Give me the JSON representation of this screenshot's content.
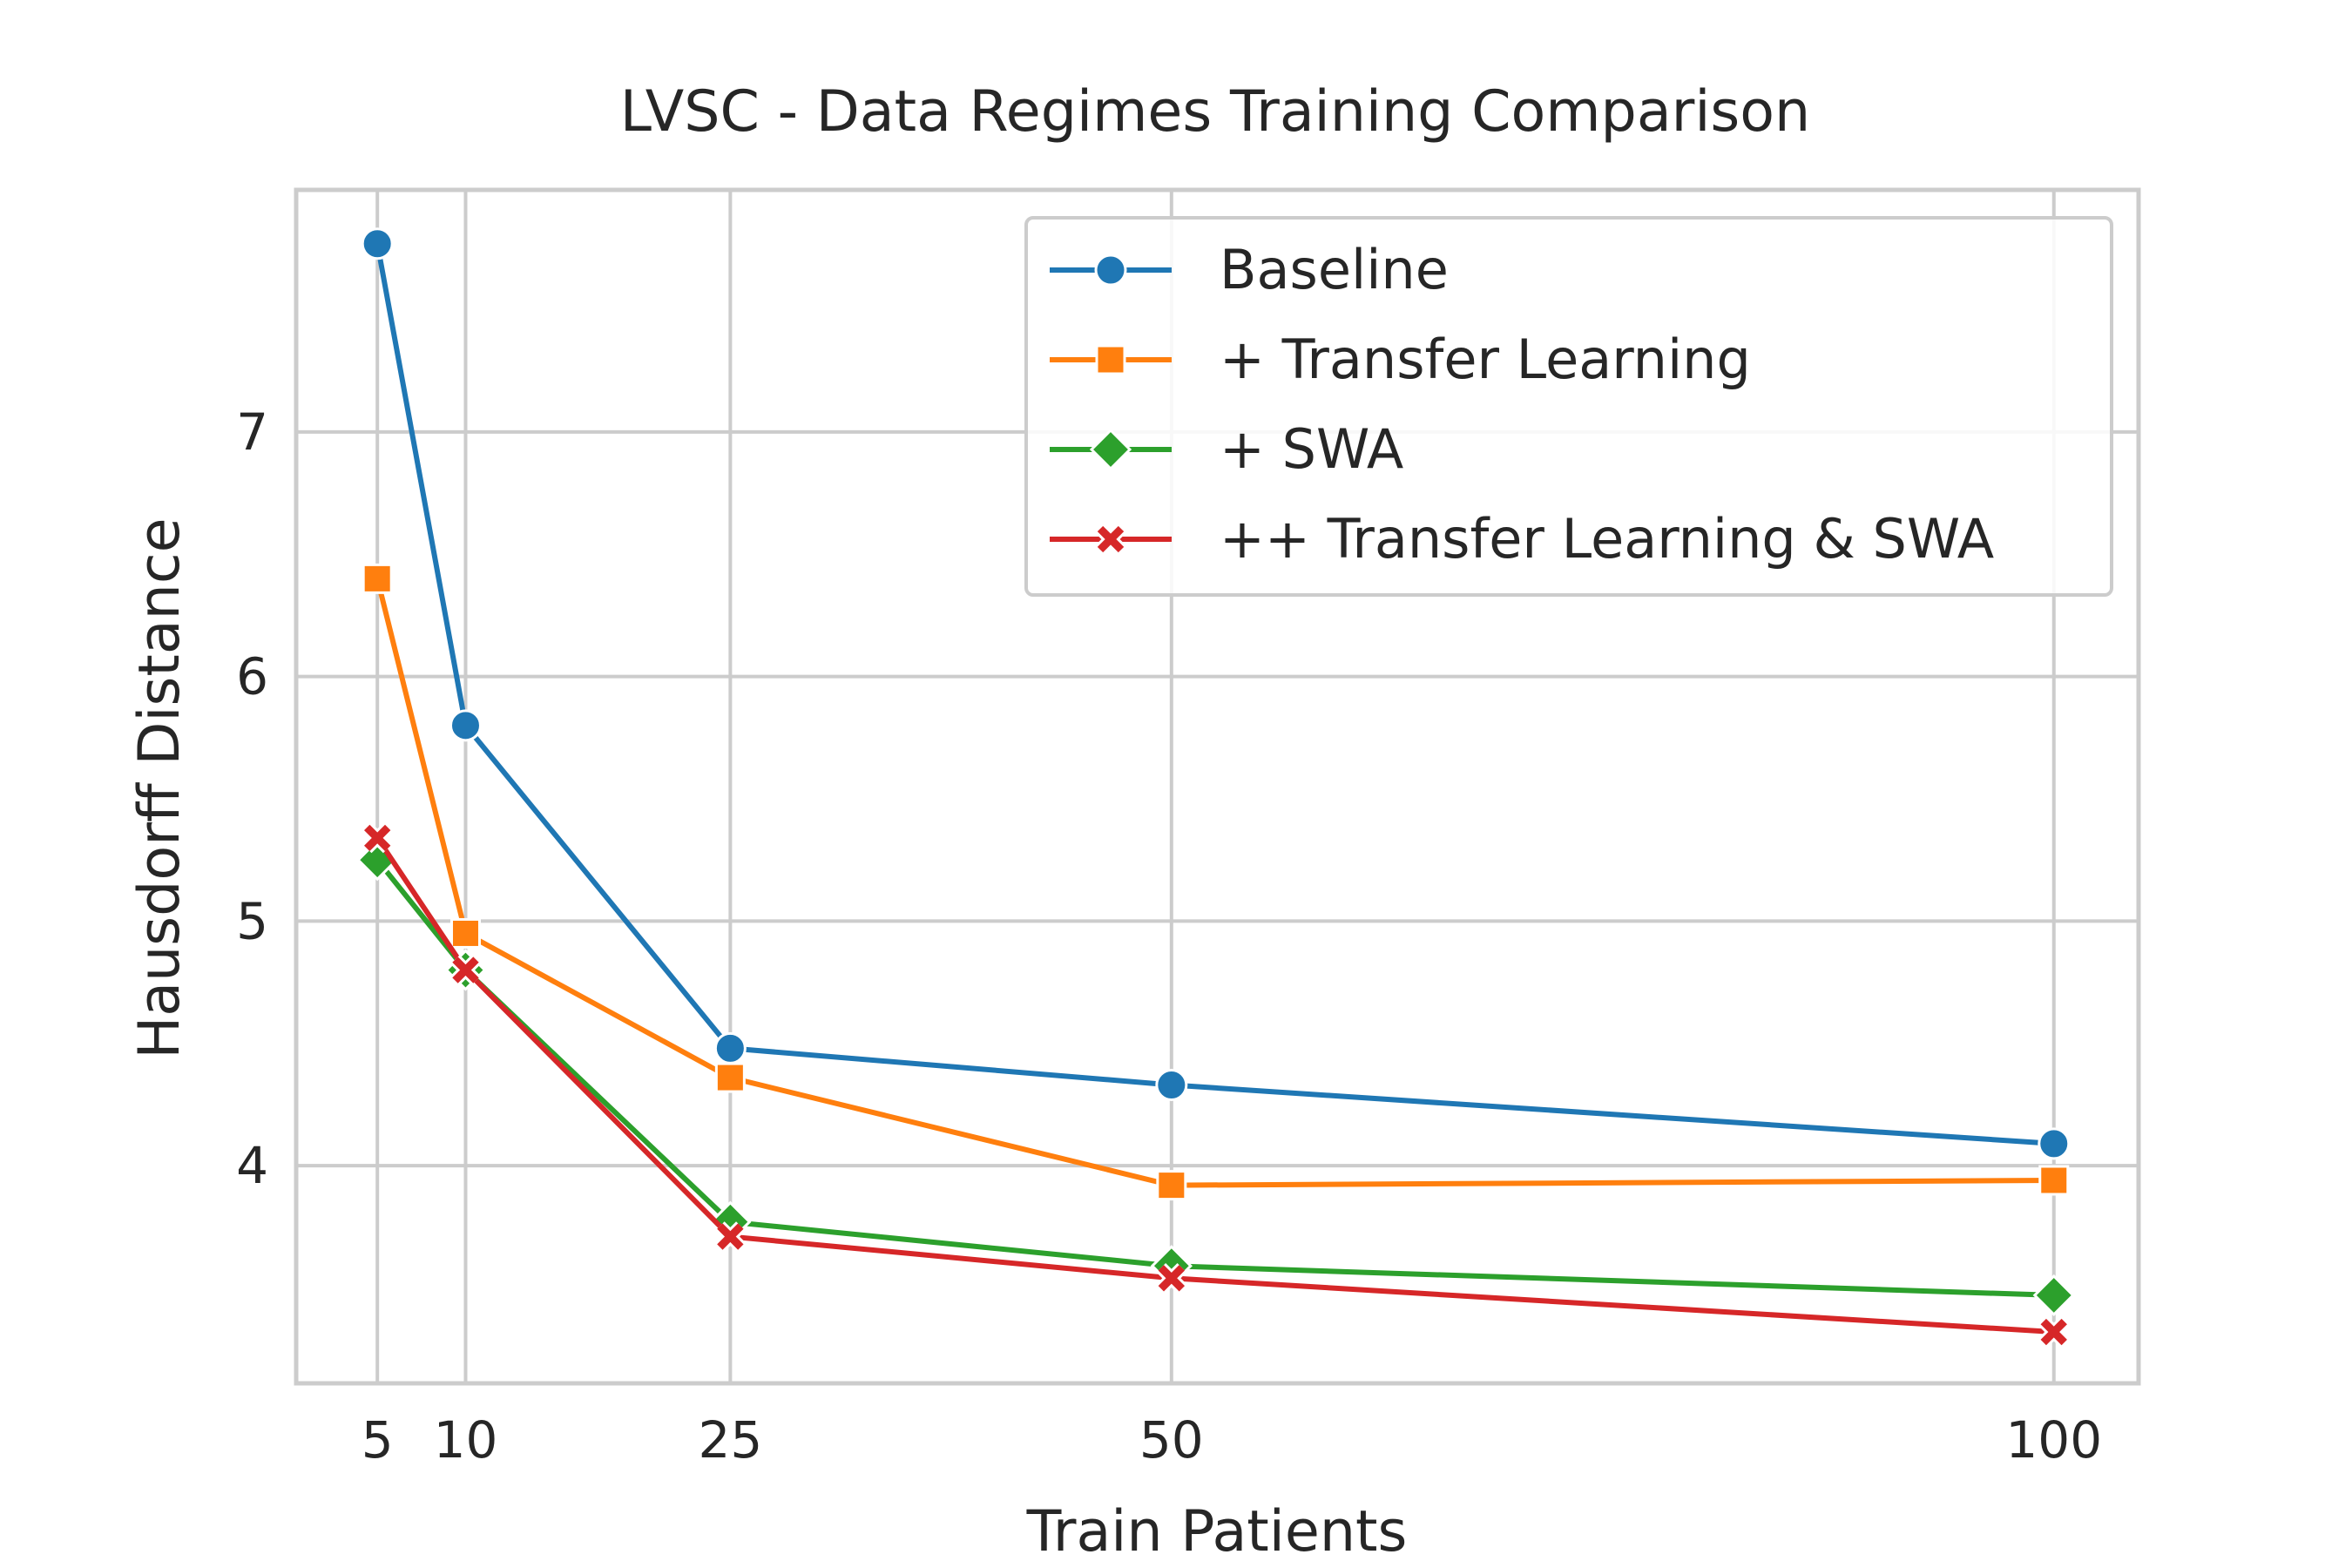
{
  "chart_data": {
    "type": "line",
    "title": "LVSC - Data Regimes Training Comparison",
    "xlabel": "Train Patients",
    "ylabel": "Hausdorff Distance",
    "x": [
      5,
      10,
      25,
      50,
      100
    ],
    "xticks": [
      "5",
      "10",
      "25",
      "50",
      "100"
    ],
    "yticks": [
      "4",
      "5",
      "6",
      "7"
    ],
    "xlim": [
      0.4,
      104.8
    ],
    "ylim": [
      3.11,
      7.99
    ],
    "grid": true,
    "legend_position": "top-right",
    "series": [
      {
        "name": "Baseline",
        "color": "#1f77b4",
        "marker": "circle",
        "values": [
          7.77,
          5.8,
          4.48,
          4.33,
          4.09
        ]
      },
      {
        "name": "+ Transfer Learning",
        "color": "#ff7f0e",
        "marker": "square",
        "values": [
          6.4,
          4.95,
          4.36,
          3.92,
          3.94
        ]
      },
      {
        "name": "+ SWA",
        "color": "#2ca02c",
        "marker": "diamond",
        "values": [
          5.25,
          4.8,
          3.77,
          3.59,
          3.47
        ]
      },
      {
        "name": "++ Transfer Learning & SWA",
        "color": "#d62728",
        "marker": "x",
        "values": [
          5.34,
          4.8,
          3.71,
          3.54,
          3.32
        ]
      }
    ]
  }
}
